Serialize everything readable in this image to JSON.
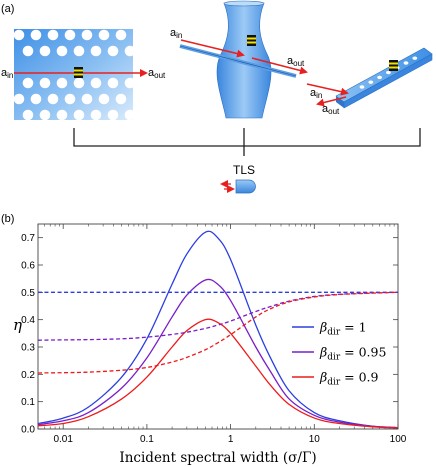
{
  "panel_a": {
    "label": "(a)",
    "tls_label": "TLS",
    "left": {
      "a_sym": "a",
      "in_sub": "in",
      "out_sub": "out"
    },
    "middle": {
      "a_sym": "a",
      "in_sub": "in",
      "out_sub": "out"
    },
    "right": {
      "a_sym": "a",
      "in_sub": "in",
      "out_sub": "out"
    }
  },
  "panel_b": {
    "label": "(b)"
  },
  "colors": {
    "blue": "#2b3fe0",
    "purple": "#7a1fc8",
    "red": "#ee1b1b",
    "device_blue": "#5a9fe6",
    "arrow_red": "#e82020",
    "emitter_yellow": "#f1e100"
  },
  "chart_data": {
    "type": "line",
    "title": "",
    "xlabel": "Incident spectral width (σ/Γ)",
    "ylabel": "η",
    "xscale": "log",
    "xlim": [
      0.005,
      100
    ],
    "ylim": [
      0,
      0.75
    ],
    "xticks": [
      0.01,
      0.1,
      1,
      10,
      100
    ],
    "xtick_labels": [
      "0.01",
      "0.1",
      "1",
      "10",
      "100"
    ],
    "yticks": [
      0.0,
      0.1,
      0.2,
      0.3,
      0.4,
      0.5,
      0.6,
      0.7
    ],
    "ytick_labels": [
      "0.0",
      "0.1",
      "0.2",
      "0.3",
      "0.4",
      "0.5",
      "0.6",
      "0.7"
    ],
    "grid": false,
    "legend_position": "right",
    "x": [
      0.005,
      0.01,
      0.02,
      0.05,
      0.1,
      0.2,
      0.3,
      0.5,
      0.7,
      1,
      2,
      3,
      5,
      10,
      20,
      50,
      100
    ],
    "series": [
      {
        "name": "β_dir = 1",
        "color": "blue",
        "style": "solid",
        "values": [
          0.02,
          0.04,
          0.08,
          0.19,
          0.33,
          0.53,
          0.64,
          0.72,
          0.7,
          0.62,
          0.38,
          0.26,
          0.14,
          0.06,
          0.03,
          0.01,
          0.005
        ]
      },
      {
        "name": "β_dir = 0.95",
        "color": "purple",
        "style": "solid",
        "values": [
          0.016,
          0.03,
          0.06,
          0.15,
          0.26,
          0.41,
          0.49,
          0.545,
          0.53,
          0.47,
          0.3,
          0.21,
          0.11,
          0.05,
          0.025,
          0.01,
          0.005
        ]
      },
      {
        "name": "β_dir = 0.9",
        "color": "red",
        "style": "solid",
        "values": [
          0.012,
          0.02,
          0.045,
          0.11,
          0.19,
          0.3,
          0.36,
          0.4,
          0.39,
          0.35,
          0.23,
          0.16,
          0.09,
          0.04,
          0.02,
          0.008,
          0.004
        ]
      },
      {
        "name": "",
        "color": "blue",
        "style": "dashed",
        "values": [
          0.5,
          0.5,
          0.5,
          0.5,
          0.5,
          0.5,
          0.5,
          0.5,
          0.5,
          0.5,
          0.5,
          0.5,
          0.5,
          0.5,
          0.5,
          0.5,
          0.5
        ]
      },
      {
        "name": "",
        "color": "purple",
        "style": "dashed",
        "values": [
          0.325,
          0.326,
          0.327,
          0.33,
          0.336,
          0.346,
          0.354,
          0.368,
          0.38,
          0.395,
          0.43,
          0.448,
          0.468,
          0.485,
          0.493,
          0.498,
          0.5
        ]
      },
      {
        "name": "",
        "color": "red",
        "style": "dashed",
        "values": [
          0.205,
          0.206,
          0.208,
          0.215,
          0.225,
          0.245,
          0.262,
          0.29,
          0.315,
          0.345,
          0.41,
          0.44,
          0.465,
          0.483,
          0.492,
          0.497,
          0.5
        ]
      }
    ],
    "legend": [
      {
        "label": "β_dir = 1",
        "color": "blue"
      },
      {
        "label": "β_dir = 0.95",
        "color": "purple"
      },
      {
        "label": "β_dir = 0.9",
        "color": "red"
      }
    ]
  }
}
